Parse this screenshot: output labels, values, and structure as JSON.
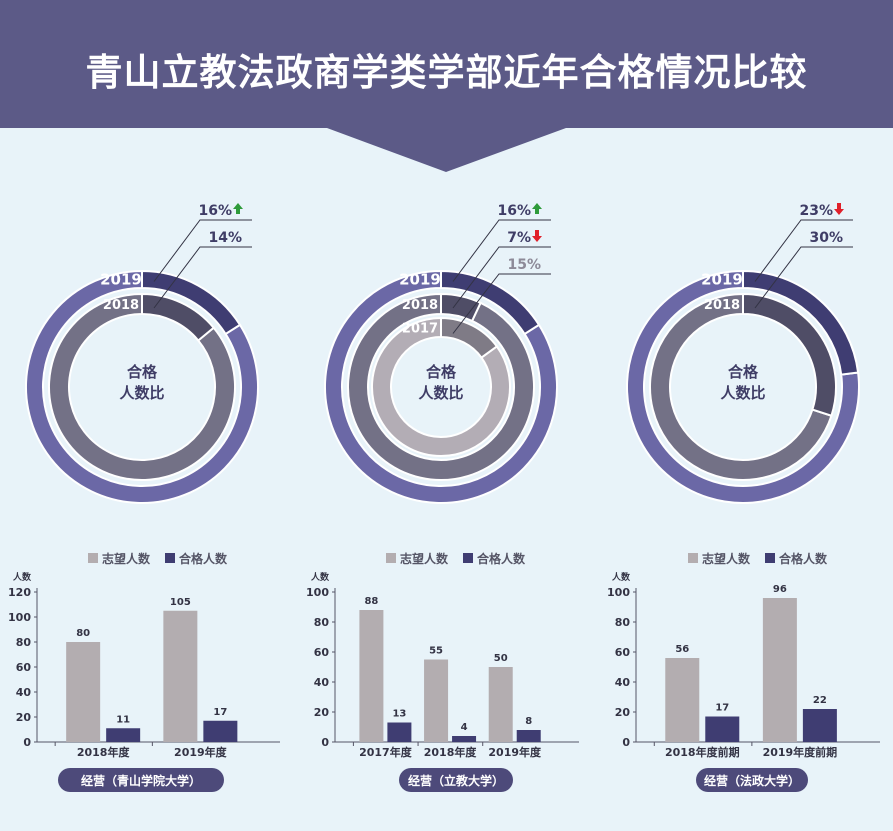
{
  "title": "青山立教法政商学类学部近年合格情况比较",
  "colors": {
    "header": "#5c5a87",
    "ring_outer": "#6b68a6",
    "ring_outer_hl": "#3f3d72",
    "ring_mid": "#737186",
    "ring_mid_hl": "#4f4d66",
    "ring_inner": "#b3adb5",
    "ring_inner_hl": "#7f7b86",
    "bar_applicants": "#b3adb0",
    "bar_passed": "#3f3d72",
    "up": "#2e9b3a",
    "down": "#e0202a",
    "pill": "#4d4a7a"
  },
  "donut_center_label": [
    "合格",
    "人数比"
  ],
  "donuts": [
    {
      "rings": [
        {
          "year": "2019",
          "pct": 16,
          "label": "16%",
          "trend": "up"
        },
        {
          "year": "2018",
          "pct": 14,
          "label": "14%",
          "trend": ""
        }
      ]
    },
    {
      "rings": [
        {
          "year": "2019",
          "pct": 16,
          "label": "16%",
          "trend": "up"
        },
        {
          "year": "2018",
          "pct": 7,
          "label": "7%",
          "trend": "down"
        },
        {
          "year": "2017",
          "pct": 15,
          "label": "15%",
          "trend": ""
        }
      ]
    },
    {
      "rings": [
        {
          "year": "2019",
          "pct": 23,
          "label": "23%",
          "trend": "down"
        },
        {
          "year": "2018",
          "pct": 30,
          "label": "30%",
          "trend": ""
        }
      ]
    }
  ],
  "chart_data": [
    {
      "type": "bar",
      "series_names": [
        "志望人数",
        "合格人数"
      ],
      "ylabel": "人数",
      "ylim": [
        0,
        120
      ],
      "yticks": [
        0,
        20,
        40,
        60,
        80,
        100,
        120
      ],
      "categories": [
        "2018年度",
        "2019年度"
      ],
      "series": [
        {
          "name": "志望人数",
          "values": [
            80,
            105
          ]
        },
        {
          "name": "合格人数",
          "values": [
            11,
            17
          ]
        }
      ],
      "caption": "经营（青山学院大学）"
    },
    {
      "type": "bar",
      "series_names": [
        "志望人数",
        "合格人数"
      ],
      "ylabel": "人数",
      "ylim": [
        0,
        100
      ],
      "yticks": [
        0,
        20,
        40,
        60,
        80,
        100
      ],
      "categories": [
        "2017年度",
        "2018年度",
        "2019年度"
      ],
      "series": [
        {
          "name": "志望人数",
          "values": [
            88,
            55,
            50
          ]
        },
        {
          "name": "合格人数",
          "values": [
            13,
            4,
            8
          ]
        }
      ],
      "caption": "经营（立教大学）"
    },
    {
      "type": "bar",
      "series_names": [
        "志望人数",
        "合格人数"
      ],
      "ylabel": "人数",
      "ylim": [
        0,
        100
      ],
      "yticks": [
        0,
        20,
        40,
        60,
        80,
        100
      ],
      "categories": [
        "2018年度前期",
        "2019年度前期"
      ],
      "series": [
        {
          "name": "志望人数",
          "values": [
            56,
            96
          ]
        },
        {
          "name": "合格人数",
          "values": [
            17,
            22
          ]
        }
      ],
      "caption": "经营（法政大学）"
    }
  ]
}
